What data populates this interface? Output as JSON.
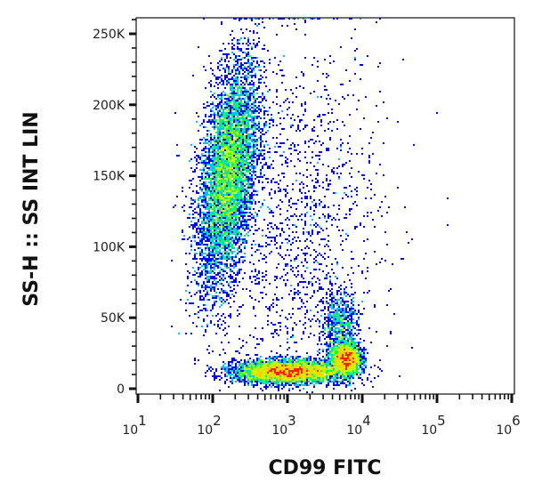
{
  "chart_data": {
    "type": "heatmap",
    "subtype": "flow-cytometry-density-dot-plot",
    "xlabel": "CD99 FITC",
    "ylabel": "SS-H :: SS INT LIN",
    "x_scale": "log",
    "xlim": [
      10,
      1000000
    ],
    "x_ticks": [
      {
        "value": 10,
        "base": "10",
        "exp": "1"
      },
      {
        "value": 100,
        "base": "10",
        "exp": "2"
      },
      {
        "value": 1000,
        "base": "10",
        "exp": "3"
      },
      {
        "value": 10000,
        "base": "10",
        "exp": "4"
      },
      {
        "value": 100000,
        "base": "10",
        "exp": "5"
      },
      {
        "value": 1000000,
        "base": "10",
        "exp": "6"
      }
    ],
    "y_scale": "linear",
    "ylim": [
      0,
      262000
    ],
    "y_ticks": [
      {
        "value": 0,
        "label": "0"
      },
      {
        "value": 50000,
        "label": "50K"
      },
      {
        "value": 100000,
        "label": "100K"
      },
      {
        "value": 150000,
        "label": "150K"
      },
      {
        "value": 200000,
        "label": "200K"
      },
      {
        "value": 250000,
        "label": "250K"
      }
    ],
    "grid": false,
    "colormap": [
      "#0000ff",
      "#00c0ff",
      "#00ff60",
      "#c0ff00",
      "#ffd000",
      "#ff2000"
    ],
    "populations": [
      {
        "x_center": 160,
        "x_log_sd": 0.2,
        "y_center": 150000,
        "y_sd": 35000,
        "events": 7000,
        "x_y_slope": 0.35
      },
      {
        "x_center": 1000,
        "x_log_sd": 0.35,
        "y_center": 12000,
        "y_sd": 4000,
        "events": 5000,
        "x_y_slope": 0
      },
      {
        "x_center": 6000,
        "x_log_sd": 0.1,
        "y_center": 21000,
        "y_sd": 6000,
        "events": 2200,
        "x_y_slope": 0
      },
      {
        "x_center": 5000,
        "x_log_sd": 0.12,
        "y_center": 45000,
        "y_sd": 12000,
        "events": 700,
        "x_y_slope": 0
      },
      {
        "x_center": 1500,
        "x_log_sd": 0.55,
        "y_center": 110000,
        "y_sd": 70000,
        "events": 1500,
        "x_y_slope": 0
      }
    ]
  }
}
